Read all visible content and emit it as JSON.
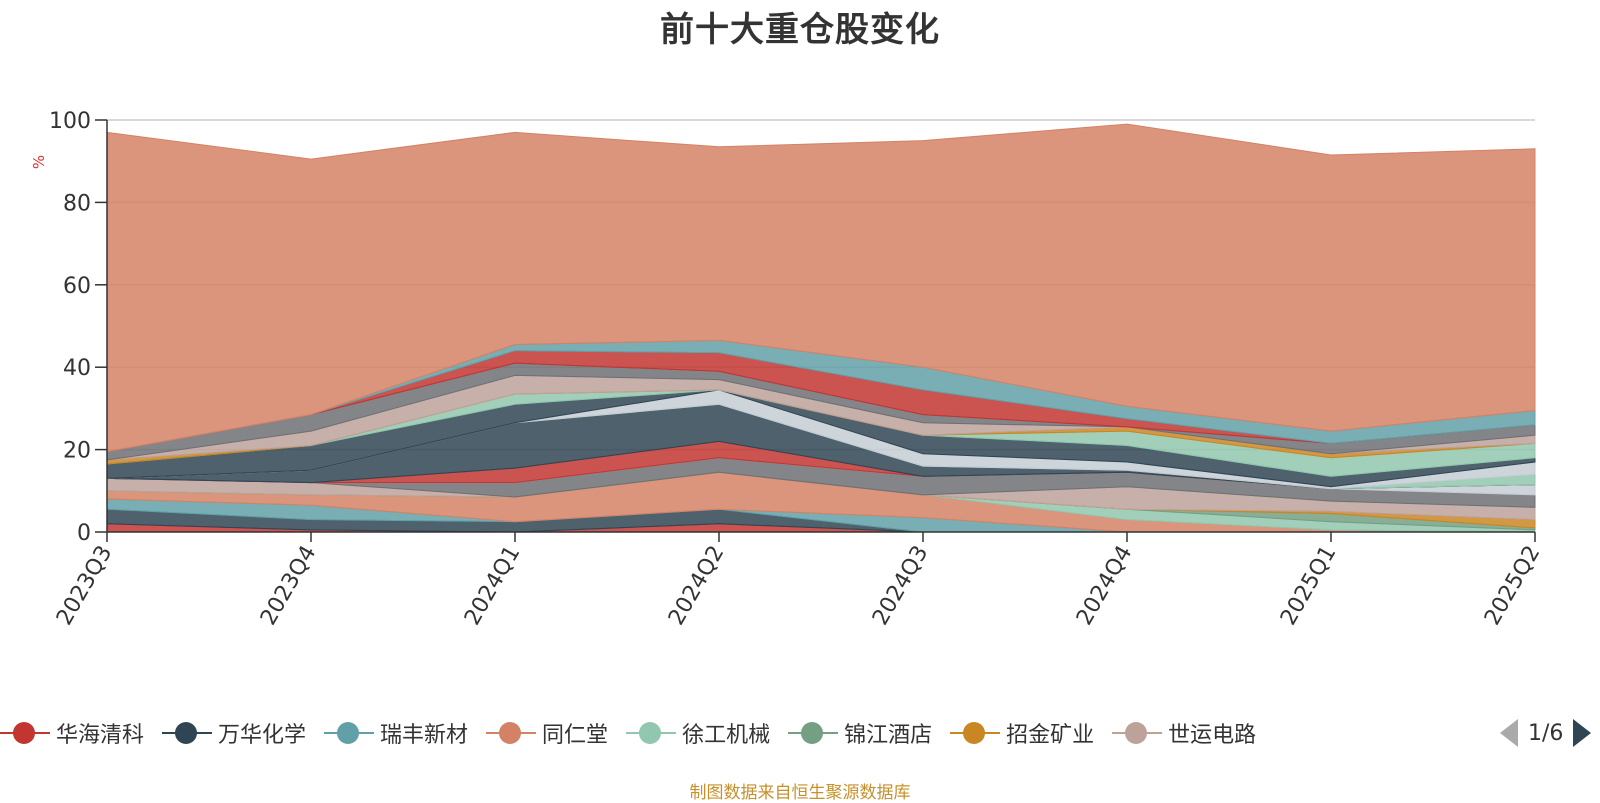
{
  "chart_data": {
    "type": "area",
    "title": "前十大重仓股变化",
    "ylabel": "%",
    "ylim": [
      0,
      100
    ],
    "y_ticks": [
      0,
      20,
      40,
      60,
      80,
      100
    ],
    "grid": true,
    "categories": [
      "2023Q3",
      "2023Q4",
      "2024Q1",
      "2024Q2",
      "2024Q3",
      "2024Q4",
      "2025Q1",
      "2025Q2"
    ],
    "legend_page": "1/6",
    "legend_position": "bottom",
    "series": [
      {
        "name": "华海清科",
        "color": "#c23531",
        "values": [
          2.0,
          0.5,
          0,
          2.0,
          0,
          0,
          0,
          0
        ]
      },
      {
        "name": "万华化学",
        "color": "#2f4554",
        "values": [
          3.5,
          2.5,
          2.5,
          3.5,
          0,
          0,
          0,
          0
        ]
      },
      {
        "name": "瑞丰新材",
        "color": "#61a0a8",
        "values": [
          2.5,
          3.5,
          0,
          0,
          3.5,
          0,
          0,
          0
        ]
      },
      {
        "name": "同仁堂",
        "color": "#d48265",
        "values": [
          2.0,
          2.5,
          6.0,
          9.0,
          5.5,
          3.0,
          0.5,
          0
        ]
      },
      {
        "name": "徐工机械",
        "color": "#91c7ae",
        "values": [
          0,
          0,
          0,
          0,
          0,
          2.5,
          2.0,
          0.5
        ]
      },
      {
        "name": "锦江酒店",
        "color": "#749f83",
        "values": [
          0,
          0,
          0,
          0,
          0,
          0,
          2.0,
          0.5
        ]
      },
      {
        "name": "招金矿业",
        "color": "#ca8622",
        "values": [
          0,
          0,
          0,
          0,
          0,
          0,
          0.5,
          2.0
        ]
      },
      {
        "name": "世运电路",
        "color": "#bda29a",
        "values": [
          3.0,
          3.0,
          0,
          0,
          0,
          5.5,
          2.5,
          3.0
        ]
      },
      {
        "name": "",
        "color": "#6e7074",
        "values": [
          0,
          0,
          3.5,
          3.5,
          4.5,
          3.5,
          3.0,
          3.0
        ]
      },
      {
        "name": "",
        "color": "#546570",
        "values": [
          0,
          0,
          0,
          0,
          0,
          0,
          0,
          0
        ]
      },
      {
        "name": "",
        "color": "#c4ccd3",
        "values": [
          0,
          0,
          0,
          0,
          0,
          0,
          0,
          2.5
        ]
      },
      {
        "name": "",
        "color": "#c23531",
        "values": [
          0,
          0,
          3.5,
          4.0,
          0,
          0,
          0,
          0
        ]
      },
      {
        "name": "",
        "color": "#2f4554",
        "values": [
          0,
          3.0,
          11.0,
          9.0,
          2.5,
          0.5,
          0,
          0
        ]
      },
      {
        "name": "",
        "color": "#61a0a8",
        "values": [
          0,
          0,
          0,
          0,
          0,
          0,
          0,
          0
        ]
      },
      {
        "name": "",
        "color": "#d48265",
        "values": [
          0,
          0,
          0,
          0,
          0,
          0,
          0,
          0
        ]
      },
      {
        "name": "",
        "color": "#91c7ae",
        "values": [
          0,
          0,
          0,
          0,
          0,
          0,
          0,
          2.5
        ]
      },
      {
        "name": "",
        "color": "#749f83",
        "values": [
          0,
          0,
          0,
          0,
          0,
          0,
          0,
          0
        ]
      },
      {
        "name": "",
        "color": "#ca8622",
        "values": [
          0,
          0,
          0,
          0,
          0,
          0,
          0,
          0
        ]
      },
      {
        "name": "",
        "color": "#bda29a",
        "values": [
          0,
          0,
          0,
          0,
          0,
          0,
          0,
          0
        ]
      },
      {
        "name": "",
        "color": "#6e7074",
        "values": [
          0,
          0,
          0,
          0,
          0,
          0,
          0,
          0
        ]
      },
      {
        "name": "",
        "color": "#546570",
        "values": [
          0,
          0,
          0,
          0,
          0,
          0,
          0,
          0
        ]
      },
      {
        "name": "",
        "color": "#c4ccd3",
        "values": [
          0,
          0,
          0,
          3.5,
          3.0,
          2.0,
          0.5,
          3.0
        ]
      },
      {
        "name": "",
        "color": "#c23531",
        "values": [
          0,
          0,
          0,
          0,
          0,
          0,
          0,
          0
        ]
      },
      {
        "name": "",
        "color": "#2f4554",
        "values": [
          3.5,
          6.0,
          4.5,
          0,
          4.5,
          4.0,
          2.5,
          1.0
        ]
      },
      {
        "name": "",
        "color": "#61a0a8",
        "values": [
          0,
          0,
          0,
          0,
          0,
          0,
          0,
          0
        ]
      },
      {
        "name": "",
        "color": "#d48265",
        "values": [
          0,
          0,
          0,
          0,
          0,
          0,
          0,
          0
        ]
      },
      {
        "name": "",
        "color": "#91c7ae",
        "values": [
          0,
          0,
          2.5,
          0,
          0,
          3.5,
          4.5,
          3.5
        ]
      },
      {
        "name": "",
        "color": "#749f83",
        "values": [
          0,
          0,
          0,
          0,
          0,
          0,
          0,
          0
        ]
      },
      {
        "name": "",
        "color": "#ca8622",
        "values": [
          1.0,
          0,
          0,
          0,
          0,
          1.0,
          1.0,
          0
        ]
      },
      {
        "name": "",
        "color": "#bda29a",
        "values": [
          0,
          3.5,
          4.5,
          2.5,
          3.0,
          0,
          0,
          2.0
        ]
      },
      {
        "name": "",
        "color": "#6e7074",
        "values": [
          2.0,
          4.0,
          3.0,
          2.0,
          2.0,
          0,
          2.5,
          2.5
        ]
      },
      {
        "name": "",
        "color": "#c23531",
        "values": [
          0,
          0,
          3.0,
          4.5,
          6.0,
          2.0,
          0,
          0
        ]
      },
      {
        "name": "",
        "color": "#61a0a8",
        "values": [
          0,
          0,
          1.5,
          3.0,
          5.5,
          3.0,
          3.0,
          3.5
        ]
      },
      {
        "name": "",
        "color": "#d48265",
        "values": [
          77.5,
          62.0,
          51.5,
          47.0,
          55.0,
          68.5,
          67.0,
          63.5
        ]
      }
    ]
  },
  "legend": {
    "page": "1/6"
  },
  "source_note": "制图数据来自恒生聚源数据库"
}
